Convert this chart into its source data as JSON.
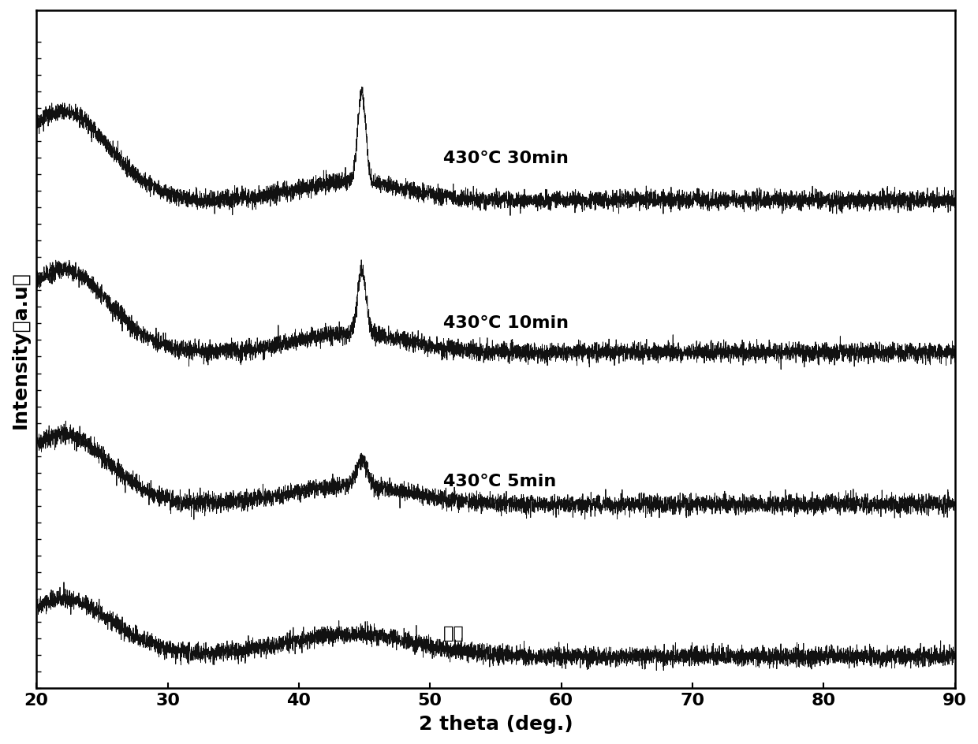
{
  "xlabel": "2 theta (deg.)",
  "ylabel": "Intensity（a.u）",
  "xlim": [
    20,
    90
  ],
  "x_ticks": [
    20,
    30,
    40,
    50,
    60,
    70,
    80,
    90
  ],
  "labels": [
    "430℃ 30min",
    "430℃ 10min",
    "430℃ 5min",
    "铸态"
  ],
  "offsets": [
    0.72,
    0.48,
    0.24,
    0.0
  ],
  "line_color": "#111111",
  "background_color": "#ffffff",
  "seed": 42
}
